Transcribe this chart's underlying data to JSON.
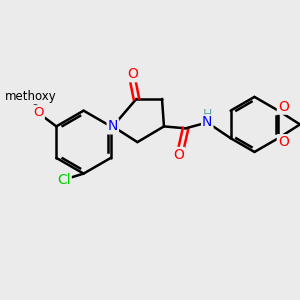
{
  "bg_color": "#ebebeb",
  "atom_colors": {
    "N": "#0000ff",
    "O": "#ff0000",
    "Cl": "#00cc00",
    "H": "#5ba8a8"
  },
  "bond_color": "#000000",
  "bond_width": 1.8,
  "font_size": 9.5
}
